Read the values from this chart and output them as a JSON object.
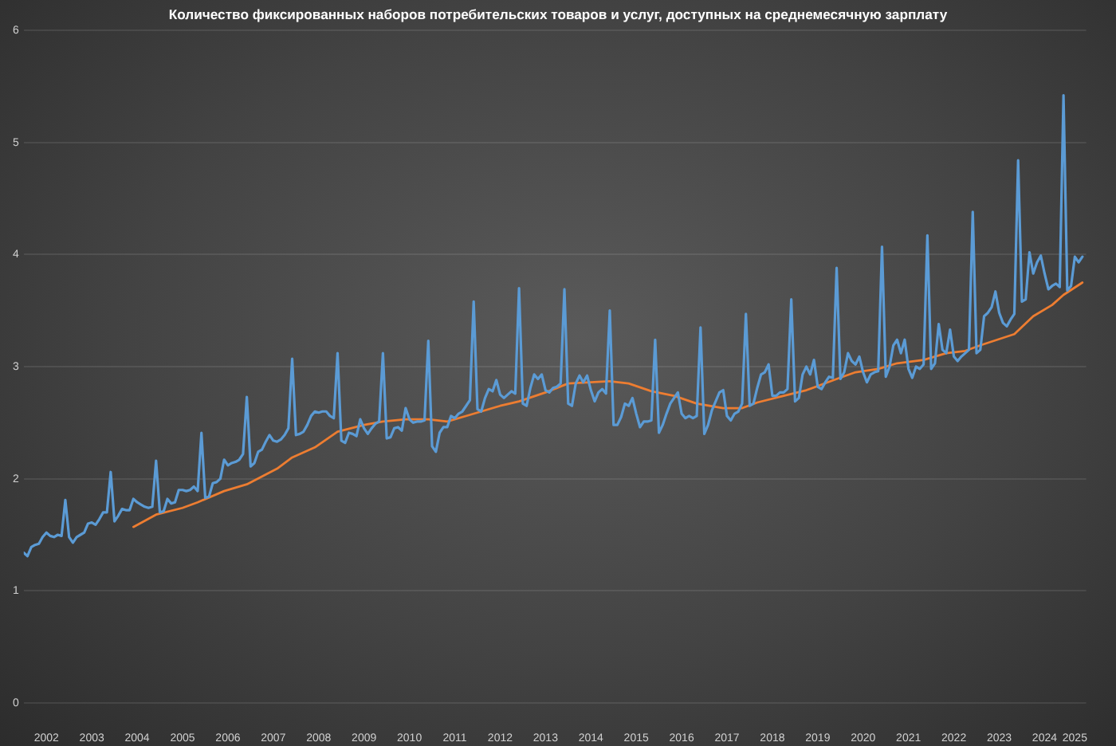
{
  "chart_data": {
    "type": "line",
    "title": "Количество фиксированных наборов потребительских товаров и услуг, доступных на среднемесячную зарплату",
    "x": [
      "2002-01",
      "2002-02",
      "2002-03",
      "2002-04",
      "2002-05",
      "2002-06",
      "2002-07",
      "2002-08",
      "2002-09",
      "2002-10",
      "2002-11",
      "2002-12",
      "2003-01",
      "2003-02",
      "2003-03",
      "2003-04",
      "2003-05",
      "2003-06",
      "2003-07",
      "2003-08",
      "2003-09",
      "2003-10",
      "2003-11",
      "2003-12",
      "2004-01",
      "2004-02",
      "2004-03",
      "2004-04",
      "2004-05",
      "2004-06",
      "2004-07",
      "2004-08",
      "2004-09",
      "2004-10",
      "2004-11",
      "2004-12",
      "2005-01",
      "2005-02",
      "2005-03",
      "2005-04",
      "2005-05",
      "2005-06",
      "2005-07",
      "2005-08",
      "2005-09",
      "2005-10",
      "2005-11",
      "2005-12",
      "2006-01",
      "2006-02",
      "2006-03",
      "2006-04",
      "2006-05",
      "2006-06",
      "2006-07",
      "2006-08",
      "2006-09",
      "2006-10",
      "2006-11",
      "2006-12",
      "2007-01",
      "2007-02",
      "2007-03",
      "2007-04",
      "2007-05",
      "2007-06",
      "2007-07",
      "2007-08",
      "2007-09",
      "2007-10",
      "2007-11",
      "2007-12",
      "2008-01",
      "2008-02",
      "2008-03",
      "2008-04",
      "2008-05",
      "2008-06",
      "2008-07",
      "2008-08",
      "2008-09",
      "2008-10",
      "2008-11",
      "2008-12",
      "2009-01",
      "2009-02",
      "2009-03",
      "2009-04",
      "2009-05",
      "2009-06",
      "2009-07",
      "2009-08",
      "2009-09",
      "2009-10",
      "2009-11",
      "2009-12",
      "2010-01",
      "2010-02",
      "2010-03",
      "2010-04",
      "2010-05",
      "2010-06",
      "2010-07",
      "2010-08",
      "2010-09",
      "2010-10",
      "2010-11",
      "2010-12",
      "2011-01",
      "2011-02",
      "2011-03",
      "2011-04",
      "2011-05",
      "2011-06",
      "2011-07",
      "2011-08",
      "2011-09",
      "2011-10",
      "2011-11",
      "2011-12",
      "2012-01",
      "2012-02",
      "2012-03",
      "2012-04",
      "2012-05",
      "2012-06",
      "2012-07",
      "2012-08",
      "2012-09",
      "2012-10",
      "2012-11",
      "2012-12",
      "2013-01",
      "2013-02",
      "2013-03",
      "2013-04",
      "2013-05",
      "2013-06",
      "2013-07",
      "2013-08",
      "2013-09",
      "2013-10",
      "2013-11",
      "2013-12",
      "2014-01",
      "2014-02",
      "2014-03",
      "2014-04",
      "2014-05",
      "2014-06",
      "2014-07",
      "2014-08",
      "2014-09",
      "2014-10",
      "2014-11",
      "2014-12",
      "2015-01",
      "2015-02",
      "2015-03",
      "2015-04",
      "2015-05",
      "2015-06",
      "2015-07",
      "2015-08",
      "2015-09",
      "2015-10",
      "2015-11",
      "2015-12",
      "2016-01",
      "2016-02",
      "2016-03",
      "2016-04",
      "2016-05",
      "2016-06",
      "2016-07",
      "2016-08",
      "2016-09",
      "2016-10",
      "2016-11",
      "2016-12",
      "2017-01",
      "2017-02",
      "2017-03",
      "2017-04",
      "2017-05",
      "2017-06",
      "2017-07",
      "2017-08",
      "2017-09",
      "2017-10",
      "2017-11",
      "2017-12",
      "2018-01",
      "2018-02",
      "2018-03",
      "2018-04",
      "2018-05",
      "2018-06",
      "2018-07",
      "2018-08",
      "2018-09",
      "2018-10",
      "2018-11",
      "2018-12",
      "2019-01",
      "2019-02",
      "2019-03",
      "2019-04",
      "2019-05",
      "2019-06",
      "2019-07",
      "2019-08",
      "2019-09",
      "2019-10",
      "2019-11",
      "2019-12",
      "2020-01",
      "2020-02",
      "2020-03",
      "2020-04",
      "2020-05",
      "2020-06",
      "2020-07",
      "2020-08",
      "2020-09",
      "2020-10",
      "2020-11",
      "2020-12",
      "2021-01",
      "2021-02",
      "2021-03",
      "2021-04",
      "2021-05",
      "2021-06",
      "2021-07",
      "2021-08",
      "2021-09",
      "2021-10",
      "2021-11",
      "2021-12",
      "2022-01",
      "2022-02",
      "2022-03",
      "2022-04",
      "2022-05",
      "2022-06",
      "2022-07",
      "2022-08",
      "2022-09",
      "2022-10",
      "2022-11",
      "2022-12",
      "2023-01",
      "2023-02",
      "2023-03",
      "2023-04",
      "2023-05",
      "2023-06",
      "2023-07",
      "2023-08",
      "2023-09",
      "2023-10",
      "2023-11",
      "2023-12",
      "2024-01",
      "2024-02",
      "2024-03",
      "2024-04",
      "2024-05",
      "2024-06",
      "2024-07",
      "2024-08",
      "2024-09",
      "2024-10",
      "2024-11",
      "2024-12",
      "2025-01",
      "2025-02",
      "2025-03",
      "2025-04",
      "2025-05"
    ],
    "series": [
      {
        "color": "#5b9bd5",
        "values": [
          1.34,
          1.31,
          1.39,
          1.41,
          1.42,
          1.48,
          1.52,
          1.49,
          1.48,
          1.5,
          1.49,
          1.81,
          1.48,
          1.43,
          1.48,
          1.5,
          1.52,
          1.6,
          1.61,
          1.59,
          1.64,
          1.7,
          1.7,
          2.06,
          1.62,
          1.67,
          1.73,
          1.72,
          1.72,
          1.82,
          1.79,
          1.77,
          1.75,
          1.74,
          1.75,
          2.16,
          1.7,
          1.71,
          1.82,
          1.78,
          1.79,
          1.9,
          1.9,
          1.89,
          1.9,
          1.93,
          1.89,
          2.41,
          1.83,
          1.84,
          1.96,
          1.97,
          2.0,
          2.17,
          2.12,
          2.14,
          2.15,
          2.17,
          2.22,
          2.73,
          2.11,
          2.14,
          2.24,
          2.26,
          2.33,
          2.39,
          2.34,
          2.33,
          2.35,
          2.39,
          2.45,
          3.07,
          2.39,
          2.4,
          2.42,
          2.48,
          2.56,
          2.6,
          2.59,
          2.6,
          2.6,
          2.56,
          2.54,
          3.12,
          2.34,
          2.32,
          2.41,
          2.4,
          2.38,
          2.53,
          2.45,
          2.4,
          2.45,
          2.49,
          2.51,
          3.12,
          2.36,
          2.37,
          2.45,
          2.46,
          2.43,
          2.63,
          2.53,
          2.5,
          2.51,
          2.51,
          2.52,
          3.23,
          2.29,
          2.24,
          2.41,
          2.46,
          2.46,
          2.56,
          2.54,
          2.58,
          2.6,
          2.65,
          2.7,
          3.58,
          2.62,
          2.6,
          2.72,
          2.8,
          2.78,
          2.88,
          2.75,
          2.72,
          2.75,
          2.78,
          2.76,
          3.7,
          2.67,
          2.65,
          2.81,
          2.93,
          2.89,
          2.93,
          2.79,
          2.77,
          2.81,
          2.82,
          2.85,
          3.69,
          2.67,
          2.65,
          2.85,
          2.92,
          2.86,
          2.92,
          2.79,
          2.69,
          2.77,
          2.8,
          2.76,
          3.5,
          2.48,
          2.48,
          2.55,
          2.67,
          2.65,
          2.72,
          2.58,
          2.46,
          2.51,
          2.51,
          2.52,
          3.24,
          2.41,
          2.48,
          2.58,
          2.67,
          2.72,
          2.77,
          2.58,
          2.54,
          2.56,
          2.54,
          2.56,
          3.35,
          2.4,
          2.48,
          2.61,
          2.69,
          2.77,
          2.79,
          2.56,
          2.52,
          2.58,
          2.6,
          2.67,
          3.47,
          2.65,
          2.67,
          2.81,
          2.93,
          2.95,
          3.02,
          2.74,
          2.74,
          2.77,
          2.77,
          2.8,
          3.6,
          2.69,
          2.72,
          2.93,
          3.0,
          2.93,
          3.06,
          2.82,
          2.8,
          2.86,
          2.91,
          2.9,
          3.88,
          2.89,
          2.95,
          3.12,
          3.05,
          3.02,
          3.09,
          2.95,
          2.86,
          2.93,
          2.95,
          2.96,
          4.07,
          2.91,
          3.0,
          3.19,
          3.24,
          3.12,
          3.24,
          2.98,
          2.9,
          3.0,
          2.98,
          3.02,
          4.17,
          2.98,
          3.03,
          3.38,
          3.15,
          3.12,
          3.33,
          3.09,
          3.05,
          3.09,
          3.12,
          3.15,
          4.38,
          3.12,
          3.15,
          3.45,
          3.48,
          3.53,
          3.67,
          3.48,
          3.39,
          3.36,
          3.42,
          3.47,
          4.84,
          3.58,
          3.6,
          4.02,
          3.83,
          3.93,
          3.99,
          3.83,
          3.69,
          3.72,
          3.74,
          3.71,
          5.42,
          3.68,
          3.72,
          3.98,
          3.93,
          3.98
        ]
      },
      {
        "color": "#ed7d31",
        "x": [
          "2004-06",
          "2004-12",
          "2005-07",
          "2005-11",
          "2006-06",
          "2006-12",
          "2007-08",
          "2007-12",
          "2008-06",
          "2008-12",
          "2009-07",
          "2009-12",
          "2010-06",
          "2010-12",
          "2011-05",
          "2011-11",
          "2012-07",
          "2012-12",
          "2013-07",
          "2014-01",
          "2014-12",
          "2015-05",
          "2015-11",
          "2016-05",
          "2016-11",
          "2017-06",
          "2017-11",
          "2018-03",
          "2018-10",
          "2019-04",
          "2019-12",
          "2020-05",
          "2020-11",
          "2021-04",
          "2021-11",
          "2022-05",
          "2022-10",
          "2023-02",
          "2023-11",
          "2024-04",
          "2024-09",
          "2024-12",
          "2025-05"
        ],
        "values": [
          1.57,
          1.68,
          1.74,
          1.79,
          1.89,
          1.95,
          2.09,
          2.19,
          2.28,
          2.42,
          2.48,
          2.51,
          2.53,
          2.53,
          2.51,
          2.57,
          2.65,
          2.69,
          2.77,
          2.85,
          2.87,
          2.85,
          2.78,
          2.74,
          2.67,
          2.63,
          2.63,
          2.68,
          2.74,
          2.79,
          2.89,
          2.95,
          2.98,
          3.03,
          3.06,
          3.12,
          3.14,
          3.19,
          3.29,
          3.45,
          3.55,
          3.64,
          3.75
        ]
      }
    ],
    "xlim": [
      "2002-01",
      "2025-06"
    ],
    "xticks": [
      {
        "value": "2002-07",
        "label": "2002"
      },
      {
        "value": "2003-07",
        "label": "2003"
      },
      {
        "value": "2004-07",
        "label": "2004"
      },
      {
        "value": "2005-07",
        "label": "2005"
      },
      {
        "value": "2006-07",
        "label": "2006"
      },
      {
        "value": "2007-07",
        "label": "2007"
      },
      {
        "value": "2008-07",
        "label": "2008"
      },
      {
        "value": "2009-07",
        "label": "2009"
      },
      {
        "value": "2010-07",
        "label": "2010"
      },
      {
        "value": "2011-07",
        "label": "2011"
      },
      {
        "value": "2012-07",
        "label": "2012"
      },
      {
        "value": "2013-07",
        "label": "2013"
      },
      {
        "value": "2014-07",
        "label": "2014"
      },
      {
        "value": "2015-07",
        "label": "2015"
      },
      {
        "value": "2016-07",
        "label": "2016"
      },
      {
        "value": "2017-07",
        "label": "2017"
      },
      {
        "value": "2018-07",
        "label": "2018"
      },
      {
        "value": "2019-07",
        "label": "2019"
      },
      {
        "value": "2020-07",
        "label": "2020"
      },
      {
        "value": "2021-07",
        "label": "2021"
      },
      {
        "value": "2022-07",
        "label": "2022"
      },
      {
        "value": "2023-07",
        "label": "2023"
      },
      {
        "value": "2024-07",
        "label": "2024"
      },
      {
        "value": "2025-03",
        "label": "2025"
      }
    ],
    "ylim": [
      0,
      6
    ],
    "yticks": [
      0,
      1,
      2,
      3,
      4,
      5,
      6
    ],
    "grid": "y"
  }
}
